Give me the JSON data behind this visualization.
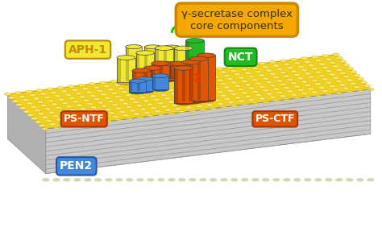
{
  "fig_width": 4.74,
  "fig_height": 3.08,
  "dpi": 100,
  "bg_color": "#ffffff",
  "aph1_color": "#f0e832",
  "aph1_color_dark": "#d4c010",
  "nct_color": "#22bb22",
  "nct_color_dark": "#158015",
  "psntf_color": "#e05500",
  "psntf_color_dark": "#aa3300",
  "psctf_color": "#e05500",
  "psctf_color_dark": "#aa3300",
  "pen2_color": "#4488dd",
  "pen2_color_dark": "#2255aa",
  "membrane_top": "#f0d020",
  "membrane_top_dark": "#c8a800",
  "membrane_dot": "#d4b000",
  "membrane_dot_bright": "#f8e870",
  "membrane_front": "#c0c0c0",
  "membrane_front_stripe": "#888888",
  "membrane_bottom_dots": "#e0e0b0",
  "aph1_label": "APH-1",
  "nct_label": "NCT",
  "psntf_label": "PS-NTF",
  "psctf_label": "PS-CTF",
  "pen2_label": "PEN2",
  "callout_text": "γ-secretase complex\ncore components",
  "callout_bg": "#f5a800",
  "callout_text_color": "#333300"
}
